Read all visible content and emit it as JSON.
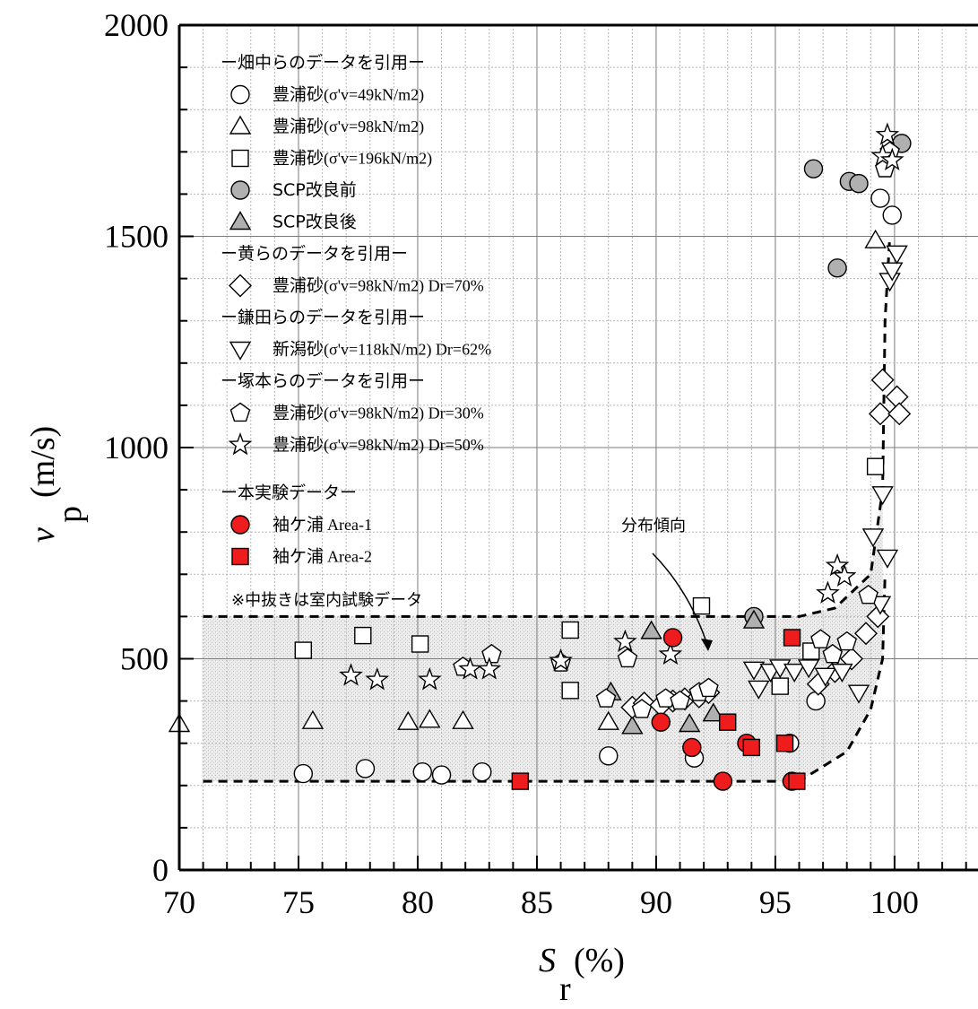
{
  "chart_data": {
    "type": "scatter",
    "xlabel": "S_r (%)",
    "xlabel_main": "S",
    "xlabel_sub": "r",
    "xlabel_unit": "(%)",
    "ylabel_main": "v",
    "ylabel_sub": "p",
    "ylabel_unit": "(m/s)",
    "xlim": [
      70,
      103.5
    ],
    "ylim": [
      0,
      2000
    ],
    "x_ticks": [
      "70",
      "75",
      "80",
      "85",
      "90",
      "95",
      "100"
    ],
    "y_ticks": [
      "0",
      "500",
      "1000",
      "1500",
      "2000"
    ],
    "grid": true,
    "legend_position": "top-left",
    "legend": [
      {
        "type": "header",
        "text": "ー畑中らのデータを引用ー"
      },
      {
        "type": "entry",
        "marker": "circle",
        "fill": "#ffffff",
        "jp": "豊浦砂",
        "cond": "(σ'v=49kN/m2)"
      },
      {
        "type": "entry",
        "marker": "triangle",
        "fill": "#ffffff",
        "jp": "豊浦砂",
        "cond": "(σ'v=98kN/m2)"
      },
      {
        "type": "entry",
        "marker": "square",
        "fill": "#ffffff",
        "jp": "豊浦砂",
        "cond": "(σ'v=196kN/m2)"
      },
      {
        "type": "entry",
        "marker": "circle",
        "fill": "#b0b0b0",
        "jp": "SCP改良前",
        "cond": ""
      },
      {
        "type": "entry",
        "marker": "triangle",
        "fill": "#b0b0b0",
        "jp": "SCP改良後",
        "cond": ""
      },
      {
        "type": "header",
        "text": "ー黄らのデータを引用ー"
      },
      {
        "type": "entry",
        "marker": "diamond",
        "fill": "#ffffff",
        "jp": "豊浦砂",
        "cond": "(σ'v=98kN/m2) Dr=70%"
      },
      {
        "type": "header",
        "text": "ー鎌田らのデータを引用ー"
      },
      {
        "type": "entry",
        "marker": "invtriangle",
        "fill": "#ffffff",
        "jp": "新潟砂",
        "cond": "(σ'v=118kN/m2) Dr=62%"
      },
      {
        "type": "header",
        "text": "ー塚本らのデータを引用ー"
      },
      {
        "type": "entry",
        "marker": "pentagon",
        "fill": "#ffffff",
        "jp": "豊浦砂",
        "cond": "(σ'v=98kN/m2) Dr=30%"
      },
      {
        "type": "entry",
        "marker": "star",
        "fill": "#ffffff",
        "jp": "豊浦砂",
        "cond": "(σ'v=98kN/m2) Dr=50%"
      },
      {
        "type": "header",
        "text": "ー本実験データー"
      },
      {
        "type": "entry",
        "marker": "circle",
        "fill": "#ee1c1c",
        "jp": "袖ケ浦",
        "cond": "Area-1"
      },
      {
        "type": "entry",
        "marker": "square",
        "fill": "#ee1c1c",
        "jp": "袖ケ浦",
        "cond": "Area-2"
      }
    ],
    "annotations": {
      "trend_label": "分布傾向",
      "note": "※中抜きは室内試験データ"
    },
    "series": [
      {
        "name": "豊浦砂(σ'v=49kN/m2)",
        "marker": "circle",
        "fill": "#ffffff",
        "x": [
          75.2,
          77.8,
          80.2,
          81.0,
          82.7,
          88.0,
          91.6,
          95.6,
          96.7,
          99.4,
          99.9
        ],
        "y": [
          228,
          240,
          232,
          225,
          232,
          270,
          265,
          300,
          400,
          1590,
          1550
        ]
      },
      {
        "name": "豊浦砂(σ'v=98kN/m2)",
        "marker": "triangle",
        "fill": "#ffffff",
        "x": [
          70.0,
          75.6,
          79.6,
          80.5,
          81.9,
          88.0,
          99.2
        ],
        "y": [
          345,
          352,
          350,
          355,
          352,
          350,
          1490
        ]
      },
      {
        "name": "豊浦砂(σ'v=196kN/m2)",
        "marker": "square",
        "fill": "#ffffff",
        "x": [
          75.2,
          77.7,
          80.1,
          86.4,
          86.4,
          91.9,
          95.2,
          96.5,
          99.2
        ],
        "y": [
          520,
          555,
          535,
          568,
          425,
          625,
          435,
          518,
          955
        ]
      },
      {
        "name": "SCP改良前",
        "marker": "circle",
        "fill": "#b0b0b0",
        "x": [
          96.6,
          97.6,
          98.1,
          98.5,
          100.3,
          94.1
        ],
        "y": [
          1660,
          1425,
          1630,
          1625,
          1720,
          600
        ]
      },
      {
        "name": "SCP改良後",
        "marker": "triangle",
        "fill": "#b0b0b0",
        "x": [
          88.1,
          89.0,
          89.8,
          91.4,
          92.4,
          94.1
        ],
        "y": [
          420,
          340,
          565,
          345,
          370,
          590
        ]
      },
      {
        "name": "豊浦砂(σ'v=98kN/m2) Dr=70%",
        "marker": "diamond",
        "fill": "#ffffff",
        "x": [
          89.0,
          89.5,
          90.2,
          90.7,
          91.2,
          91.8,
          92.2,
          96.8,
          97.5,
          98.2,
          98.8,
          99.3,
          99.5,
          99.4,
          100.1,
          100.2
        ],
        "y": [
          385,
          395,
          390,
          400,
          405,
          410,
          420,
          440,
          470,
          500,
          560,
          600,
          1160,
          1080,
          1120,
          1080
        ]
      },
      {
        "name": "新潟砂(σ'v=118kN/m2) Dr=62%",
        "marker": "invtriangle",
        "fill": "#ffffff",
        "x": [
          94.1,
          94.3,
          94.8,
          95.2,
          95.8,
          96.4,
          97.1,
          97.8,
          98.5,
          99.1,
          99.5,
          99.7,
          99.8,
          99.9,
          100.1,
          99.4
        ],
        "y": [
          475,
          430,
          470,
          480,
          470,
          480,
          460,
          470,
          420,
          790,
          890,
          740,
          1395,
          1420,
          1460,
          630
        ]
      },
      {
        "name": "豊浦砂(σ'v=98kN/m2) Dr=30%",
        "marker": "pentagon",
        "fill": "#ffffff",
        "x": [
          81.9,
          83.1,
          86.0,
          87.9,
          88.8,
          89.4,
          90.4,
          91.0,
          91.8,
          92.2,
          96.9,
          97.4,
          98.0,
          98.9,
          99.6,
          99.8
        ],
        "y": [
          480,
          510,
          490,
          405,
          500,
          380,
          405,
          400,
          420,
          430,
          545,
          510,
          540,
          650,
          1660,
          1700
        ]
      },
      {
        "name": "豊浦砂(σ'v=98kN/m2) Dr=50%",
        "marker": "star",
        "fill": "#ffffff",
        "x": [
          77.2,
          78.3,
          80.5,
          82.2,
          83.0,
          86.0,
          88.7,
          90.6,
          97.2,
          97.6,
          97.9,
          99.5,
          99.7,
          99.9
        ],
        "y": [
          460,
          450,
          450,
          475,
          475,
          495,
          540,
          510,
          655,
          720,
          695,
          1690,
          1740,
          1680
        ]
      },
      {
        "name": "袖ケ浦 Area-1",
        "marker": "circle",
        "fill": "#ee1c1c",
        "x": [
          90.2,
          90.7,
          91.5,
          92.8,
          93.8,
          95.7
        ],
        "y": [
          350,
          550,
          290,
          210,
          300,
          210
        ]
      },
      {
        "name": "袖ケ浦 Area-2",
        "marker": "square",
        "fill": "#ee1c1c",
        "x": [
          84.3,
          93.0,
          94.0,
          95.4,
          95.7,
          95.9
        ],
        "y": [
          210,
          350,
          290,
          300,
          550,
          210
        ]
      }
    ],
    "trend_band": {
      "upper": [
        [
          71.0,
          600
        ],
        [
          96.0,
          600
        ],
        [
          97.5,
          620
        ],
        [
          99.0,
          700
        ],
        [
          99.5,
          900
        ],
        [
          99.6,
          1300
        ],
        [
          99.8,
          1500
        ]
      ],
      "lower": [
        [
          71.0,
          210
        ],
        [
          96.0,
          210
        ],
        [
          98.0,
          280
        ],
        [
          99.0,
          380
        ],
        [
          99.5,
          500
        ],
        [
          99.6,
          700
        ]
      ]
    },
    "colors": {
      "axis": "#000000",
      "grid": "#9a9a9a",
      "band": "#e6e6e6",
      "red": "#ee1c1c",
      "gray": "#b0b0b0"
    }
  }
}
